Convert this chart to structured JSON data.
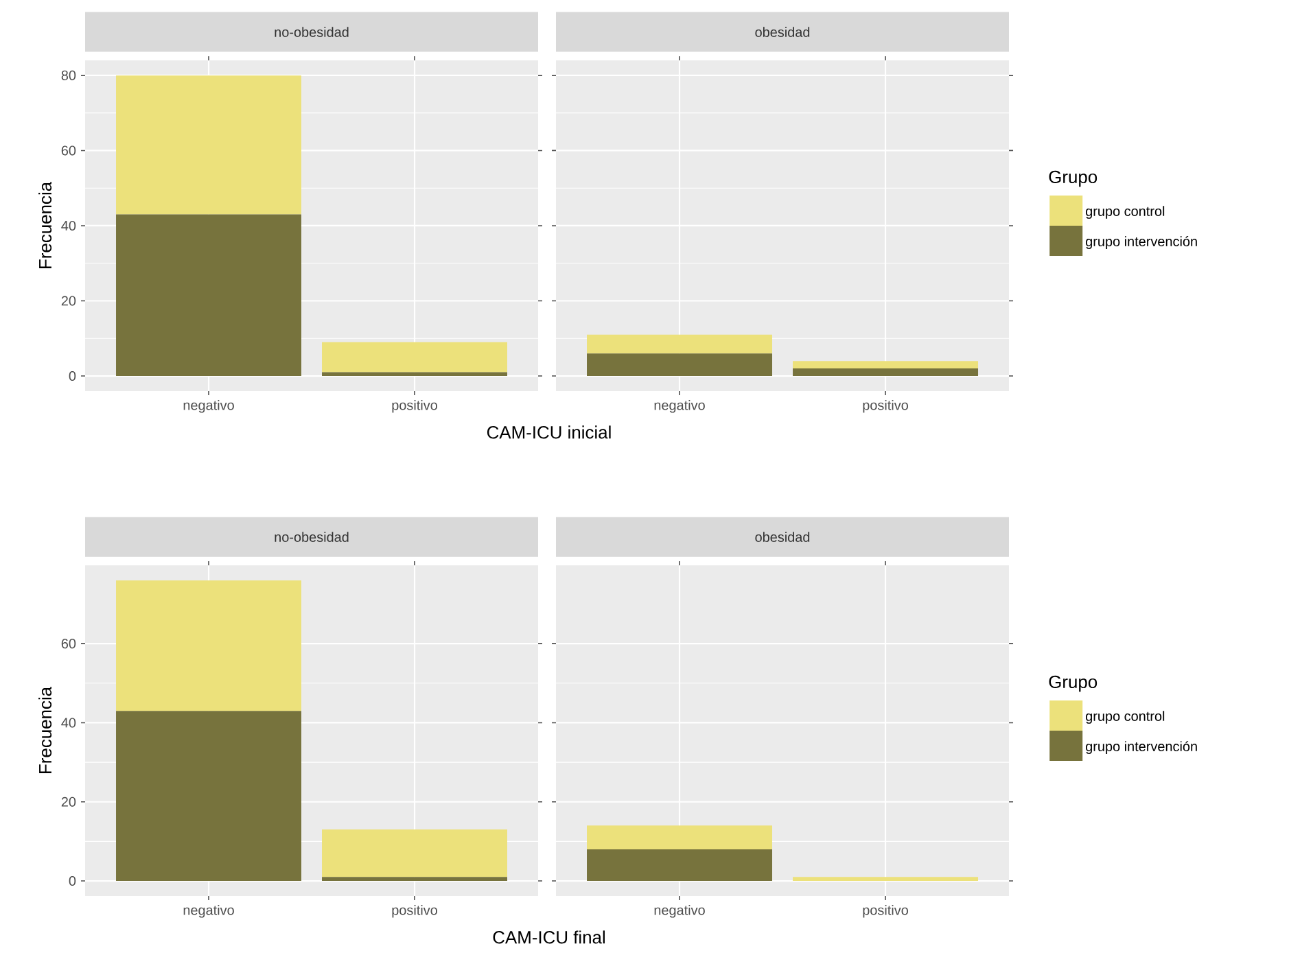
{
  "chart_data": [
    {
      "type": "bar",
      "title": "no-obesidad",
      "xlabel": "CAM-ICU inicial",
      "ylabel": "Frecuencia",
      "categories": [
        "negativo",
        "positivo"
      ],
      "stacked": true,
      "ylim": [
        -4,
        84
      ],
      "yticks": [
        0,
        20,
        40,
        60,
        80
      ],
      "grid": true,
      "series": [
        {
          "color": "#77733d",
          "values": [
            43,
            1
          ]
        },
        {
          "color": "#ece17b",
          "values": [
            37,
            8
          ]
        }
      ]
    },
    {
      "type": "bar",
      "title": "obesidad",
      "categories": [
        "negativo",
        "positivo"
      ],
      "stacked": true,
      "ylim": [
        -4,
        84
      ],
      "yticks": [
        0,
        20,
        40,
        60,
        80
      ],
      "grid": true,
      "tick_labels": "x",
      "legend": "right",
      "legend_title": "Grupo",
      "series": [
        {
          "name": "grupo intervención",
          "color": "#77733d",
          "values": [
            6,
            2
          ]
        },
        {
          "name": "grupo control",
          "color": "#ece17b",
          "values": [
            5,
            2
          ]
        }
      ]
    },
    {
      "type": "bar",
      "title": "no-obesidad",
      "xlabel": "CAM-ICU final",
      "ylabel": "Frecuencia",
      "categories": [
        "negativo",
        "positivo"
      ],
      "stacked": true,
      "ylim": [
        -3.8,
        79.8
      ],
      "yticks": [
        0,
        20,
        40,
        60
      ],
      "grid": true,
      "series": [
        {
          "color": "#77733d",
          "values": [
            43,
            1
          ]
        },
        {
          "color": "#ece17b",
          "values": [
            33,
            12
          ]
        }
      ]
    },
    {
      "type": "bar",
      "title": "obesidad",
      "categories": [
        "negativo",
        "positivo"
      ],
      "stacked": true,
      "ylim": [
        -3.8,
        79.8
      ],
      "yticks": [
        0,
        20,
        40,
        60
      ],
      "grid": true,
      "tick_labels": "x",
      "legend": "right",
      "legend_title": "Grupo",
      "series": [
        {
          "name": "grupo intervención",
          "color": "#77733d",
          "values": [
            8,
            0
          ]
        },
        {
          "name": "grupo control",
          "color": "#ece17b",
          "values": [
            6,
            1
          ]
        }
      ]
    }
  ]
}
